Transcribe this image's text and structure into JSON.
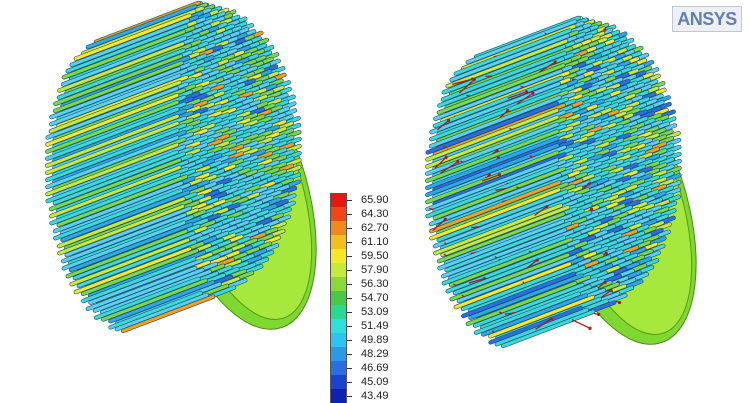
{
  "logo": {
    "text": "ANSYS",
    "color": "#5f7fb7"
  },
  "legend": {
    "labels": [
      "65.90",
      "64.30",
      "62.70",
      "61.10",
      "59.50",
      "57.90",
      "56.30",
      "54.70",
      "53.09",
      "51.49",
      "49.89",
      "48.29",
      "46.69",
      "45.09",
      "43.49"
    ],
    "colors": [
      "#e01b10",
      "#f0461a",
      "#f08a1e",
      "#f0c01e",
      "#f3e82a",
      "#c8e83a",
      "#8ad83a",
      "#4ac84a",
      "#2ad890",
      "#30e0d8",
      "#2cc4f0",
      "#2a9ae8",
      "#2a6ee0",
      "#1a44d0",
      "#1020b0"
    ]
  },
  "views": {
    "left": {
      "name": "temperature-contour-view"
    },
    "right": {
      "name": "velocity-vector-view"
    }
  }
}
